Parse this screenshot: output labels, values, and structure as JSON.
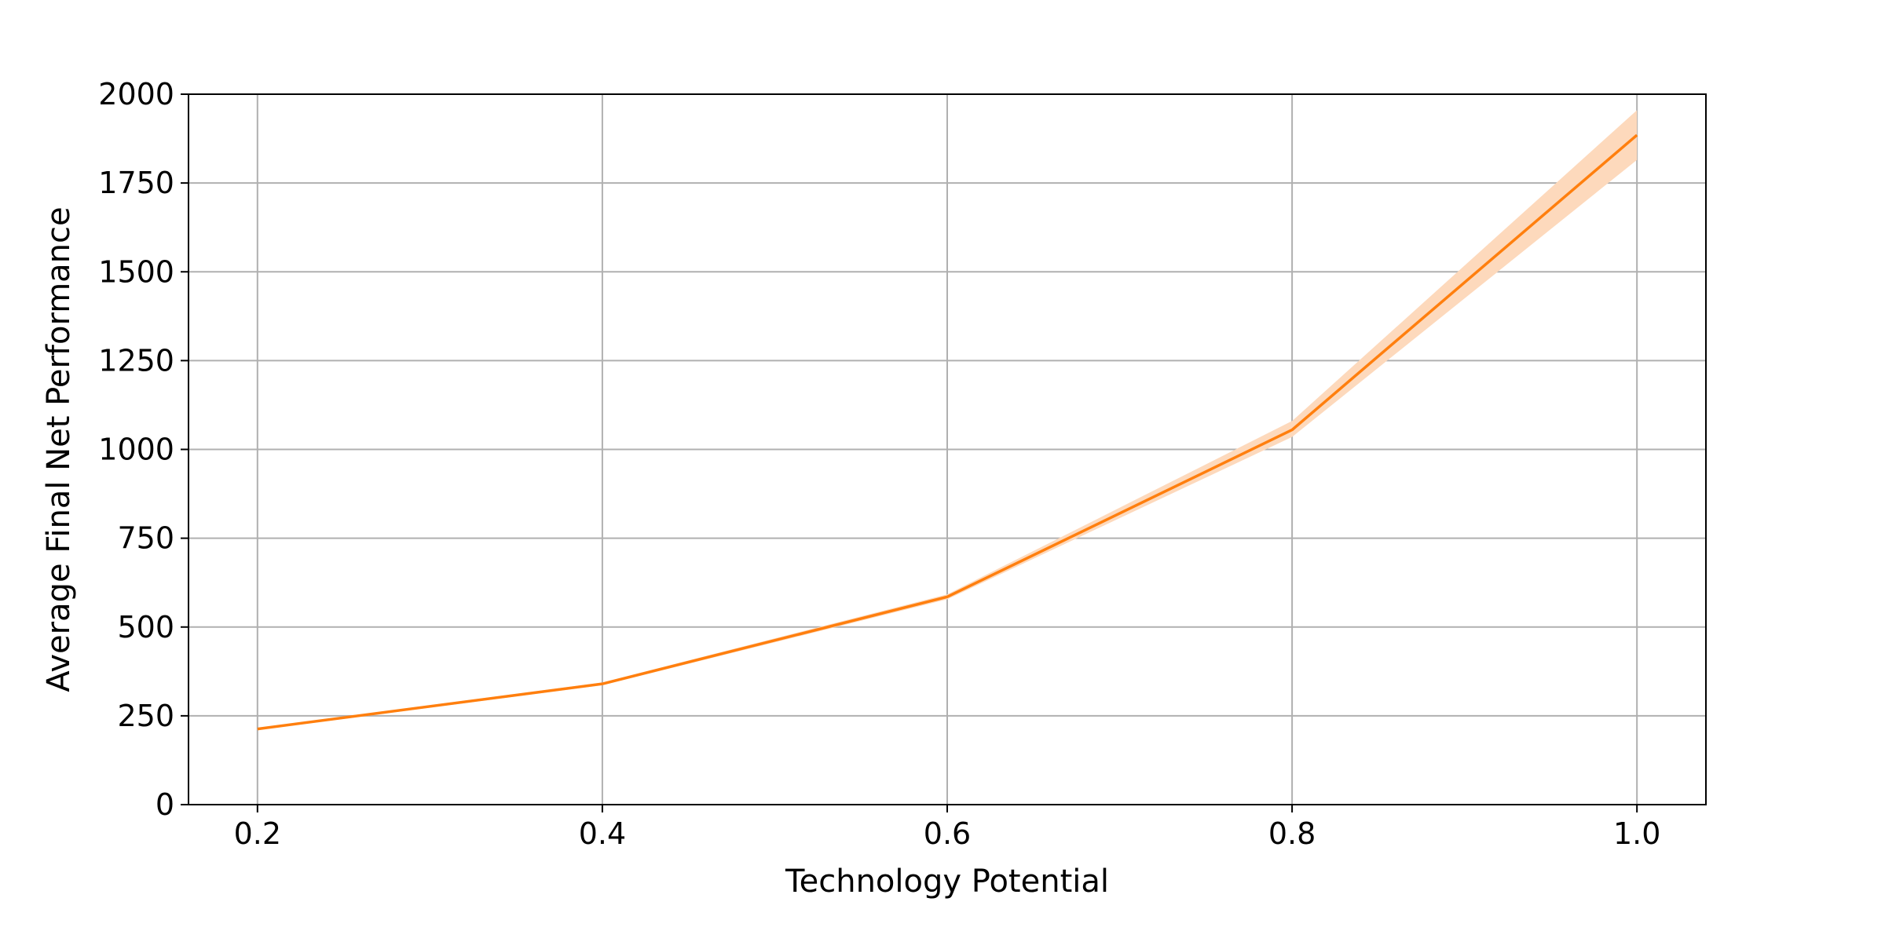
{
  "chart_data": {
    "type": "line",
    "title": "",
    "xlabel": "Technology Potential",
    "ylabel": "Average Final Net Performance",
    "xlim": [
      0.16,
      1.04
    ],
    "ylim": [
      0,
      2000
    ],
    "xticks": [
      0.2,
      0.4,
      0.6,
      0.8,
      1.0
    ],
    "xtick_labels": [
      "0.2",
      "0.4",
      "0.6",
      "0.8",
      "1.0"
    ],
    "yticks": [
      0,
      250,
      500,
      750,
      1000,
      1250,
      1500,
      1750,
      2000
    ],
    "ytick_labels": [
      "0",
      "250",
      "500",
      "750",
      "1000",
      "1250",
      "1500",
      "1750",
      "2000"
    ],
    "grid": true,
    "legend": "none",
    "series": [
      {
        "x": [
          0.2,
          0.4,
          0.6,
          0.8,
          1.0
        ],
        "y": [
          213,
          340,
          585,
          1055,
          1885
        ],
        "y_lower": [
          210,
          336,
          578,
          1035,
          1815
        ],
        "y_upper": [
          216,
          344,
          592,
          1080,
          1955
        ],
        "color": "#ff7f0e",
        "band_color": "#fdd9bc"
      }
    ]
  }
}
